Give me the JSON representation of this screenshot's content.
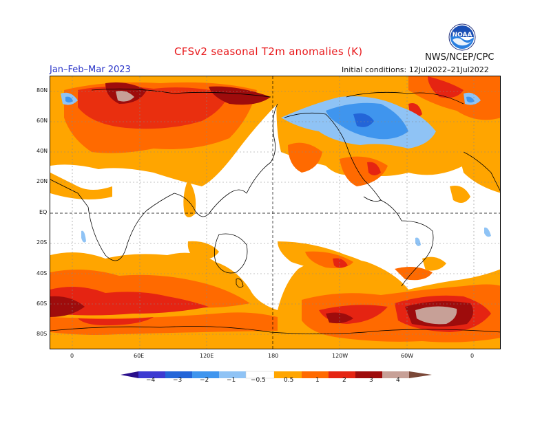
{
  "header": {
    "title": "CFSv2 seasonal T2m anomalies (K)",
    "season": "Jan–Feb–Mar 2023",
    "agency": "NWS/NCEP/CPC",
    "initial_conditions": "Initial conditions: 12Jul2022–21Jul2022",
    "logo_text": "NOAA"
  },
  "map": {
    "latitude_labels": [
      "80N",
      "60N",
      "40N",
      "20N",
      "EQ",
      "20S",
      "40S",
      "60S",
      "80S"
    ],
    "longitude_labels": [
      "0",
      "60E",
      "120E",
      "180",
      "120W",
      "60W",
      "0"
    ]
  },
  "legend": {
    "tick_labels": [
      "−4",
      "−3",
      "−2",
      "−1",
      "−0.5",
      "0.5",
      "1",
      "2",
      "3",
      "4"
    ],
    "colors": {
      "lt_-4": "#2a0f8c",
      "-4_-3": "#3c3ad1",
      "-3_-2": "#2365d8",
      "-2_-1": "#3f95ee",
      "-1_-0.5": "#8fc3f5",
      "-0.5_0.5": "#ffffff",
      "0.5_1": "#ffa500",
      "1_2": "#ff6a00",
      "2_3": "#e52412",
      "3_4": "#9e0c0c",
      "gt_4": "#c7a097",
      "extreme": "#7a4838"
    }
  }
}
